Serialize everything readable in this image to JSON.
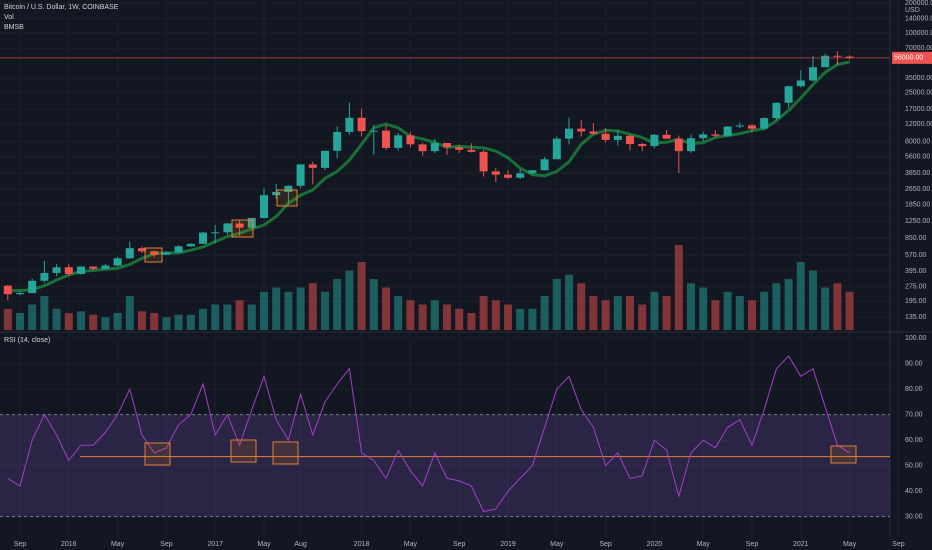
{
  "chart_data": {
    "type": "candlestick",
    "title": "Bitcoin / U.S. Dollar, 1W, COINBASE",
    "volume_label": "Vol",
    "ma_label": "BMSB",
    "currency": "USD",
    "log_scale": true,
    "grid": true,
    "up_color": "#26a69a",
    "down_color": "#ef5350",
    "categories": [
      "2015-08",
      "2015-09",
      "2015-10",
      "2015-11",
      "2015-12",
      "2016-01",
      "2016-02",
      "2016-03",
      "2016-04",
      "2016-05",
      "2016-06",
      "2016-07",
      "2016-08",
      "2016-09",
      "2016-10",
      "2016-11",
      "2016-12",
      "2017-01",
      "2017-02",
      "2017-03",
      "2017-04",
      "2017-05",
      "2017-06",
      "2017-07",
      "2017-08",
      "2017-09",
      "2017-10",
      "2017-11",
      "2017-12",
      "2018-01",
      "2018-02",
      "2018-03",
      "2018-04",
      "2018-05",
      "2018-06",
      "2018-07",
      "2018-08",
      "2018-09",
      "2018-10",
      "2018-11",
      "2018-12",
      "2019-01",
      "2019-02",
      "2019-03",
      "2019-04",
      "2019-05",
      "2019-06",
      "2019-07",
      "2019-08",
      "2019-09",
      "2019-10",
      "2019-11",
      "2019-12",
      "2020-01",
      "2020-02",
      "2020-03",
      "2020-04",
      "2020-05",
      "2020-06",
      "2020-07",
      "2020-08",
      "2020-09",
      "2020-10",
      "2020-11",
      "2020-12",
      "2021-01",
      "2021-02",
      "2021-03",
      "2021-04",
      "2021-05"
    ],
    "open": [
      280,
      230,
      236,
      314,
      377,
      430,
      368,
      437,
      416,
      448,
      530,
      670,
      624,
      575,
      608,
      700,
      742,
      963,
      970,
      1190,
      1080,
      1350,
      2300,
      2480,
      2860,
      4700,
      4340,
      6450,
      10000,
      13900,
      10200,
      10300,
      6900,
      9250,
      7500,
      6400,
      7730,
      7010,
      6600,
      6300,
      4000,
      3700,
      3450,
      3820,
      4100,
      5300,
      8550,
      10800,
      10100,
      9600,
      8300,
      9150,
      7550,
      7200,
      9350,
      8550,
      6400,
      8650,
      9450,
      9150,
      11350,
      11650,
      10800,
      13800,
      19700,
      28950,
      33100,
      45100,
      58800,
      57700
    ],
    "high": [
      285,
      245,
      330,
      500,
      465,
      460,
      440,
      440,
      465,
      550,
      780,
      700,
      630,
      620,
      720,
      750,
      975,
      1150,
      1200,
      1300,
      1350,
      2700,
      3000,
      2900,
      4700,
      5000,
      6450,
      11400,
      19800,
      17200,
      11800,
      11700,
      9800,
      10000,
      7800,
      8500,
      7760,
      7400,
      7700,
      6600,
      4300,
      4100,
      4200,
      4100,
      5600,
      9000,
      13900,
      13200,
      12300,
      10900,
      10500,
      9500,
      7750,
      9550,
      10500,
      9200,
      9450,
      10050,
      10400,
      11450,
      12450,
      12050,
      14100,
      19900,
      29300,
      41900,
      58300,
      61700,
      64900,
      59500
    ],
    "low": [
      200,
      225,
      235,
      300,
      350,
      350,
      365,
      400,
      410,
      440,
      520,
      600,
      540,
      570,
      600,
      690,
      740,
      750,
      920,
      890,
      1060,
      1350,
      2100,
      1850,
      2700,
      2950,
      4100,
      5400,
      9400,
      9000,
      5900,
      6600,
      6500,
      7000,
      5750,
      6100,
      5880,
      6100,
      6200,
      3550,
      3120,
      3350,
      3350,
      3700,
      4100,
      5300,
      7500,
      9000,
      9400,
      7800,
      7300,
      6500,
      6400,
      6850,
      8450,
      3850,
      6150,
      8100,
      8900,
      8950,
      10950,
      9850,
      10400,
      13200,
      17600,
      28100,
      32300,
      45000,
      47000,
      54000
    ],
    "close": [
      230,
      236,
      314,
      377,
      430,
      368,
      437,
      416,
      448,
      530,
      670,
      624,
      575,
      608,
      700,
      742,
      963,
      970,
      1190,
      1080,
      1350,
      2300,
      2480,
      2860,
      4700,
      4340,
      6450,
      10000,
      13900,
      10200,
      10300,
      6900,
      9250,
      7500,
      6400,
      7730,
      7010,
      6600,
      6300,
      4000,
      3700,
      3450,
      3820,
      4100,
      5300,
      8550,
      10800,
      10100,
      9600,
      8300,
      9150,
      7550,
      7200,
      9350,
      8550,
      6400,
      8650,
      9450,
      9150,
      11350,
      11650,
      10800,
      13800,
      19700,
      28950,
      33100,
      45100,
      58800,
      57700,
      56000
    ],
    "volume": [
      25,
      20,
      30,
      40,
      25,
      20,
      22,
      18,
      15,
      20,
      40,
      22,
      20,
      15,
      18,
      18,
      25,
      30,
      30,
      35,
      30,
      45,
      50,
      45,
      50,
      55,
      45,
      60,
      70,
      80,
      60,
      50,
      40,
      35,
      30,
      35,
      30,
      25,
      20,
      40,
      35,
      30,
      25,
      25,
      40,
      60,
      65,
      55,
      40,
      35,
      40,
      40,
      30,
      45,
      40,
      100,
      55,
      50,
      35,
      45,
      40,
      35,
      45,
      55,
      60,
      80,
      70,
      50,
      55,
      45
    ],
    "ma": {
      "color": "#1b7a3a",
      "values": [
        250,
        250,
        255,
        280,
        320,
        360,
        390,
        400,
        410,
        420,
        460,
        530,
        590,
        600,
        600,
        640,
        690,
        780,
        880,
        950,
        1050,
        1150,
        1400,
        1900,
        2300,
        2600,
        3400,
        4000,
        5200,
        7500,
        11000,
        12000,
        11000,
        9000,
        8500,
        7800,
        7000,
        7200,
        7000,
        6900,
        6400,
        5500,
        4300,
        3700,
        3600,
        4000,
        5000,
        7500,
        9500,
        10400,
        10200,
        9500,
        8800,
        7700,
        7900,
        8400,
        7600,
        7800,
        8800,
        9200,
        9600,
        10300,
        10800,
        13000,
        16500,
        22000,
        30000,
        40000,
        48000,
        51000
      ]
    },
    "price_line": {
      "value": 56000,
      "label": "56000.00",
      "color": "#ef5350"
    },
    "ylim": [
      100,
      215000
    ],
    "yticks": [
      {
        "value": 135,
        "label": "135.00"
      },
      {
        "value": 195,
        "label": "195.00"
      },
      {
        "value": 275,
        "label": "275.00"
      },
      {
        "value": 395,
        "label": "395.00"
      },
      {
        "value": 570,
        "label": "570.00"
      },
      {
        "value": 850,
        "label": "850.00"
      },
      {
        "value": 1250,
        "label": "1250.00"
      },
      {
        "value": 1850,
        "label": "1850.00"
      },
      {
        "value": 2650,
        "label": "2650.00"
      },
      {
        "value": 3850,
        "label": "3850.00"
      },
      {
        "value": 5600,
        "label": "5600.00"
      },
      {
        "value": 8000,
        "label": "8000.00"
      },
      {
        "value": 12000,
        "label": "12000.00"
      },
      {
        "value": 17000,
        "label": "17000.00"
      },
      {
        "value": 25000,
        "label": "25000.00"
      },
      {
        "value": 35000,
        "label": "35000.00"
      },
      {
        "value": 70000,
        "label": "70000.00"
      },
      {
        "value": 100000,
        "label": "100000.00"
      },
      {
        "value": 140000,
        "label": "140000.00"
      },
      {
        "value": 200000,
        "label": "200000.00"
      }
    ],
    "xticks": [
      {
        "value": "2015-09",
        "label": "Sep"
      },
      {
        "value": "2016-01",
        "label": "2016"
      },
      {
        "value": "2016-05",
        "label": "May"
      },
      {
        "value": "2016-09",
        "label": "Sep"
      },
      {
        "value": "2017-01",
        "label": "2017"
      },
      {
        "value": "2017-05",
        "label": "May"
      },
      {
        "value": "2017-08",
        "label": "Aug"
      },
      {
        "value": "2018-01",
        "label": "2018"
      },
      {
        "value": "2018-05",
        "label": "May"
      },
      {
        "value": "2018-09",
        "label": "Sep"
      },
      {
        "value": "2019-01",
        "label": "2019"
      },
      {
        "value": "2019-05",
        "label": "May"
      },
      {
        "value": "2019-09",
        "label": "Sep"
      },
      {
        "value": "2020-01",
        "label": "2020"
      },
      {
        "value": "2020-05",
        "label": "May"
      },
      {
        "value": "2020-09",
        "label": "Sep"
      },
      {
        "value": "2021-01",
        "label": "2021"
      },
      {
        "value": "2021-05",
        "label": "May"
      },
      {
        "value": "2021-09",
        "label": "Sep"
      }
    ],
    "rsi": {
      "title": "RSI (14, close)",
      "color": "#a43fc7",
      "values": [
        45,
        42,
        60,
        70,
        62,
        52,
        58,
        58,
        63,
        70,
        80,
        62,
        55,
        57,
        66,
        70,
        82,
        62,
        70,
        58,
        72,
        85,
        68,
        60,
        78,
        62,
        75,
        82,
        88,
        55,
        52,
        45,
        56,
        48,
        42,
        55,
        45,
        44,
        42,
        32,
        33,
        40,
        45,
        50,
        65,
        80,
        85,
        72,
        65,
        50,
        55,
        45,
        46,
        60,
        56,
        38,
        55,
        60,
        57,
        65,
        68,
        58,
        72,
        88,
        93,
        85,
        88,
        73,
        58,
        55
      ],
      "band": [
        30,
        70
      ],
      "level": 53.5,
      "ylim": [
        22,
        102
      ],
      "yticks": [
        {
          "value": 30,
          "label": "30.00"
        },
        {
          "value": 40,
          "label": "40.00"
        },
        {
          "value": 50,
          "label": "50.00"
        },
        {
          "value": 60,
          "label": "60.00"
        },
        {
          "value": 70,
          "label": "70.00"
        },
        {
          "value": 80,
          "label": "80.00"
        },
        {
          "value": 90,
          "label": "90.00"
        },
        {
          "value": 100,
          "label": "100.00"
        }
      ]
    }
  }
}
